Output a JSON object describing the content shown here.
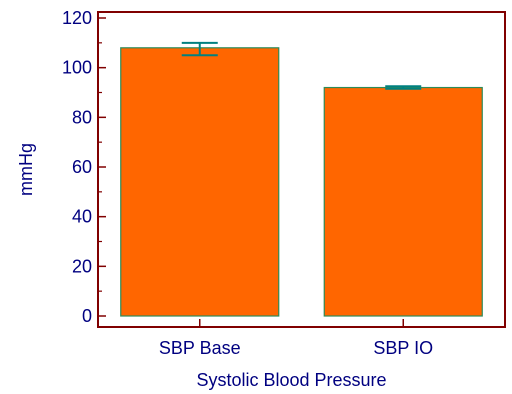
{
  "chart_data": {
    "type": "bar",
    "categories": [
      "SBP Base",
      "SBP IO"
    ],
    "values": [
      108,
      92
    ],
    "error_bars": [
      {
        "low": 105,
        "high": 110
      },
      {
        "low": 91.5,
        "high": 92.5
      }
    ],
    "ylim": [
      0,
      120
    ],
    "yticks": [
      "0",
      "20",
      "40",
      "60",
      "80",
      "100",
      "120"
    ],
    "xlabel": "Systolic Blood Pressure",
    "ylabel": "mmHg",
    "grid": false,
    "colors": {
      "bar_fill": "#ff6600",
      "bar_stroke": "#2e8b57",
      "error_bar": "#008080",
      "frame": "#800000",
      "text": "#000080"
    }
  }
}
